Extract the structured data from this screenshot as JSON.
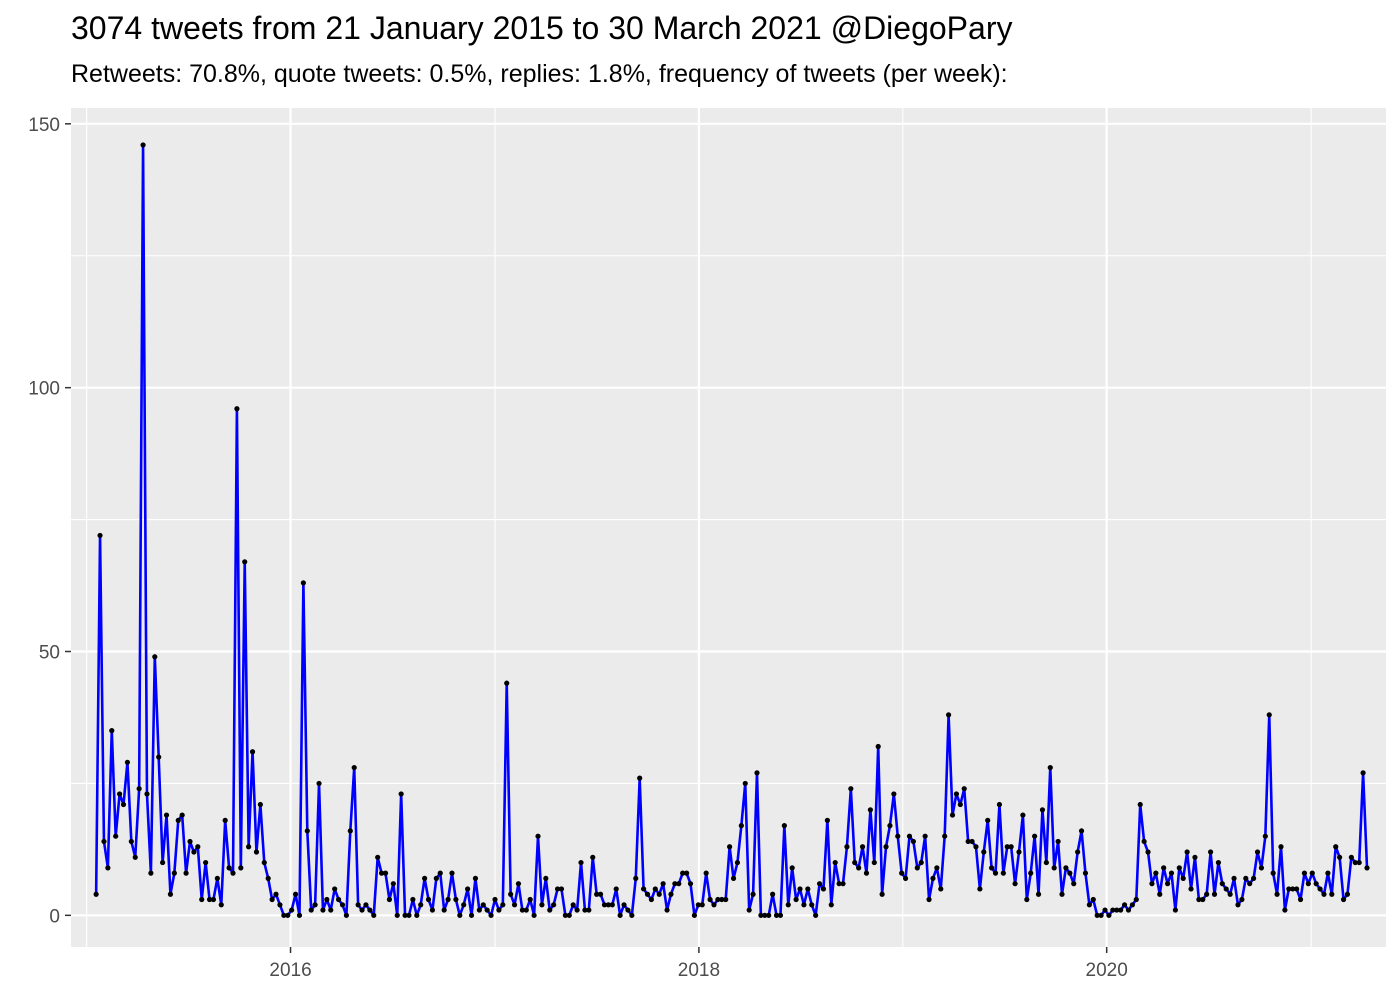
{
  "chart_data": {
    "type": "line",
    "title": "3074 tweets from 21 January 2015 to 30 March 2021 @DiegoPary",
    "subtitle": "Retweets: 70.8%, quote tweets: 0.5%, replies: 1.8%, frequency of tweets (per week):",
    "xlabel": "",
    "ylabel": "",
    "x_axis_type": "date",
    "x_range": [
      "2014-12-04",
      "2021-05-15"
    ],
    "x_ticks": [
      {
        "date": "2016-01-01",
        "label": "2016"
      },
      {
        "date": "2018-01-01",
        "label": "2018"
      },
      {
        "date": "2020-01-01",
        "label": "2020"
      }
    ],
    "x_minor_ticks": [
      "2015-01-01",
      "2017-01-01",
      "2019-01-01",
      "2021-01-01"
    ],
    "ylim": [
      -6,
      153
    ],
    "y_ticks": [
      0,
      50,
      100,
      150
    ],
    "y_minor_ticks": [
      25,
      75,
      125
    ],
    "grid": true,
    "line_color": "#0000ff",
    "point_color": "#000000",
    "panel_background": "#ebebeb",
    "series": [
      {
        "x_start": "2015-01-18",
        "x_interval_days": 7,
        "values": [
          4,
          72,
          14,
          9,
          35,
          15,
          23,
          21,
          29,
          14,
          11,
          24,
          146,
          23,
          8,
          49,
          30,
          10,
          19,
          4,
          8,
          18,
          19,
          8,
          14,
          12,
          13,
          3,
          10,
          3,
          3,
          7,
          2,
          18,
          9,
          8,
          96,
          9,
          67,
          13,
          31,
          12,
          21,
          10,
          7,
          3,
          4,
          2,
          0,
          0,
          1,
          4,
          0,
          63,
          16,
          1,
          2,
          25,
          1,
          3,
          1,
          5,
          3,
          2,
          0,
          16,
          28,
          2,
          1,
          2,
          1,
          0,
          11,
          8,
          8,
          3,
          6,
          0,
          23,
          0,
          0,
          3,
          0,
          2,
          7,
          3,
          1,
          7,
          8,
          1,
          3,
          8,
          3,
          0,
          2,
          5,
          0,
          7,
          1,
          2,
          1,
          0,
          3,
          1,
          2,
          44,
          4,
          2,
          6,
          1,
          1,
          3,
          0,
          15,
          2,
          7,
          1,
          2,
          5,
          5,
          0,
          0,
          2,
          1,
          10,
          1,
          1,
          11,
          4,
          4,
          2,
          2,
          2,
          5,
          0,
          2,
          1,
          0,
          7,
          26,
          5,
          4,
          3,
          5,
          4,
          6,
          1,
          4,
          6,
          6,
          8,
          8,
          6,
          0,
          2,
          2,
          8,
          3,
          2,
          3,
          3,
          3,
          13,
          7,
          10,
          17,
          25,
          1,
          4,
          27,
          0,
          0,
          0,
          4,
          0,
          0,
          17,
          2,
          9,
          3,
          5,
          2,
          5,
          2,
          0,
          6,
          5,
          18,
          2,
          10,
          6,
          6,
          13,
          24,
          10,
          9,
          13,
          8,
          20,
          10,
          32,
          4,
          13,
          17,
          23,
          15,
          8,
          7,
          15,
          14,
          9,
          10,
          15,
          3,
          7,
          9,
          5,
          15,
          38,
          19,
          23,
          21,
          24,
          14,
          14,
          13,
          5,
          12,
          18,
          9,
          8,
          21,
          8,
          13,
          13,
          6,
          12,
          19,
          3,
          8,
          15,
          4,
          20,
          10,
          28,
          9,
          14,
          4,
          9,
          8,
          6,
          12,
          16,
          8,
          2,
          3,
          0,
          0,
          1,
          0,
          1,
          1,
          1,
          2,
          1,
          2,
          3,
          21,
          14,
          12,
          6,
          8,
          4,
          9,
          6,
          8,
          1,
          9,
          7,
          12,
          5,
          11,
          3,
          3,
          4,
          12,
          4,
          10,
          6,
          5,
          4,
          7,
          2,
          3,
          7,
          6,
          7,
          12,
          9,
          15,
          38,
          8,
          4,
          13,
          1,
          5,
          5,
          5,
          3,
          8,
          6,
          8,
          6,
          5,
          4,
          8,
          4,
          13,
          11,
          3,
          4,
          11,
          10,
          10,
          27,
          9
        ]
      }
    ]
  }
}
